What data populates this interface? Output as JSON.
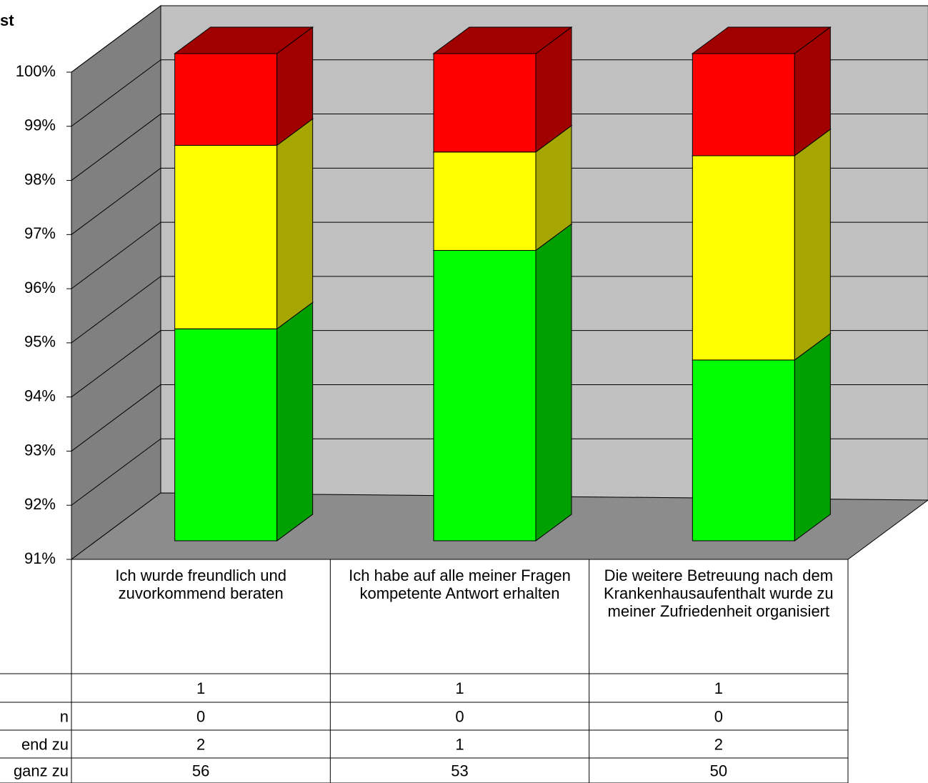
{
  "chart_data": {
    "type": "stacked100_3d",
    "title": "st",
    "categories": [
      "Ich wurde freundlich und zuvorkommend beraten",
      "Ich habe auf alle meiner Fragen kompetente Antwort erhalten",
      "Die weitere Betreuung nach dem Krankenhausaufenthalt wurde zu meiner Zufriedenheit organisiert"
    ],
    "series": [
      {
        "name": null,
        "color": "#ff0000",
        "side_color": "#a00000",
        "values": [
          1,
          1,
          1
        ]
      },
      {
        "name": "n",
        "values": [
          0,
          0,
          0
        ]
      },
      {
        "name": "end zu",
        "color": "#ffff00",
        "side_color": "#a6a600",
        "values": [
          2,
          1,
          2
        ]
      },
      {
        "name": "ganz zu",
        "color": "#00ff00",
        "side_color": "#00a000",
        "values": [
          56,
          53,
          50
        ]
      }
    ],
    "ylim": [
      91,
      100
    ],
    "yticks": [
      {
        "value": 91,
        "label": "91%"
      },
      {
        "value": 92,
        "label": "92%"
      },
      {
        "value": 93,
        "label": "93%"
      },
      {
        "value": 94,
        "label": "94%"
      },
      {
        "value": 95,
        "label": "95%"
      },
      {
        "value": 96,
        "label": "96%"
      },
      {
        "value": 97,
        "label": "97%"
      },
      {
        "value": 98,
        "label": "98%"
      },
      {
        "value": 99,
        "label": "99%"
      },
      {
        "value": 100,
        "label": "100%"
      }
    ],
    "grid": true
  }
}
